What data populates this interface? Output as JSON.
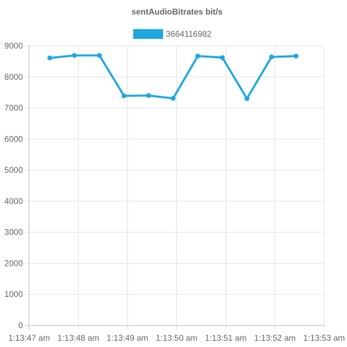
{
  "chart_data": {
    "type": "line",
    "title": "sentAudioBitrates bit/s",
    "xlabel": "",
    "ylabel": "",
    "legend_position": "top",
    "grid": true,
    "color": "#1ea7e1",
    "x_ticks": [
      "1:13:47 am",
      "1:13:48 am",
      "1:13:49 am",
      "1:13:50 am",
      "1:13:51 am",
      "1:13:52 am",
      "1:13:53 am"
    ],
    "y_ticks": [
      0,
      1000,
      2000,
      3000,
      4000,
      5000,
      6000,
      7000,
      8000,
      9000
    ],
    "xlim": [
      0,
      6
    ],
    "ylim": [
      0,
      9000
    ],
    "series": [
      {
        "name": "3664116982",
        "x": [
          0.42,
          0.92,
          1.43,
          1.93,
          2.43,
          2.93,
          3.43,
          3.93,
          4.43,
          4.93,
          5.43
        ],
        "values": [
          8610,
          8690,
          8690,
          7390,
          7400,
          7310,
          8670,
          8620,
          7300,
          8640,
          8670
        ]
      }
    ]
  }
}
